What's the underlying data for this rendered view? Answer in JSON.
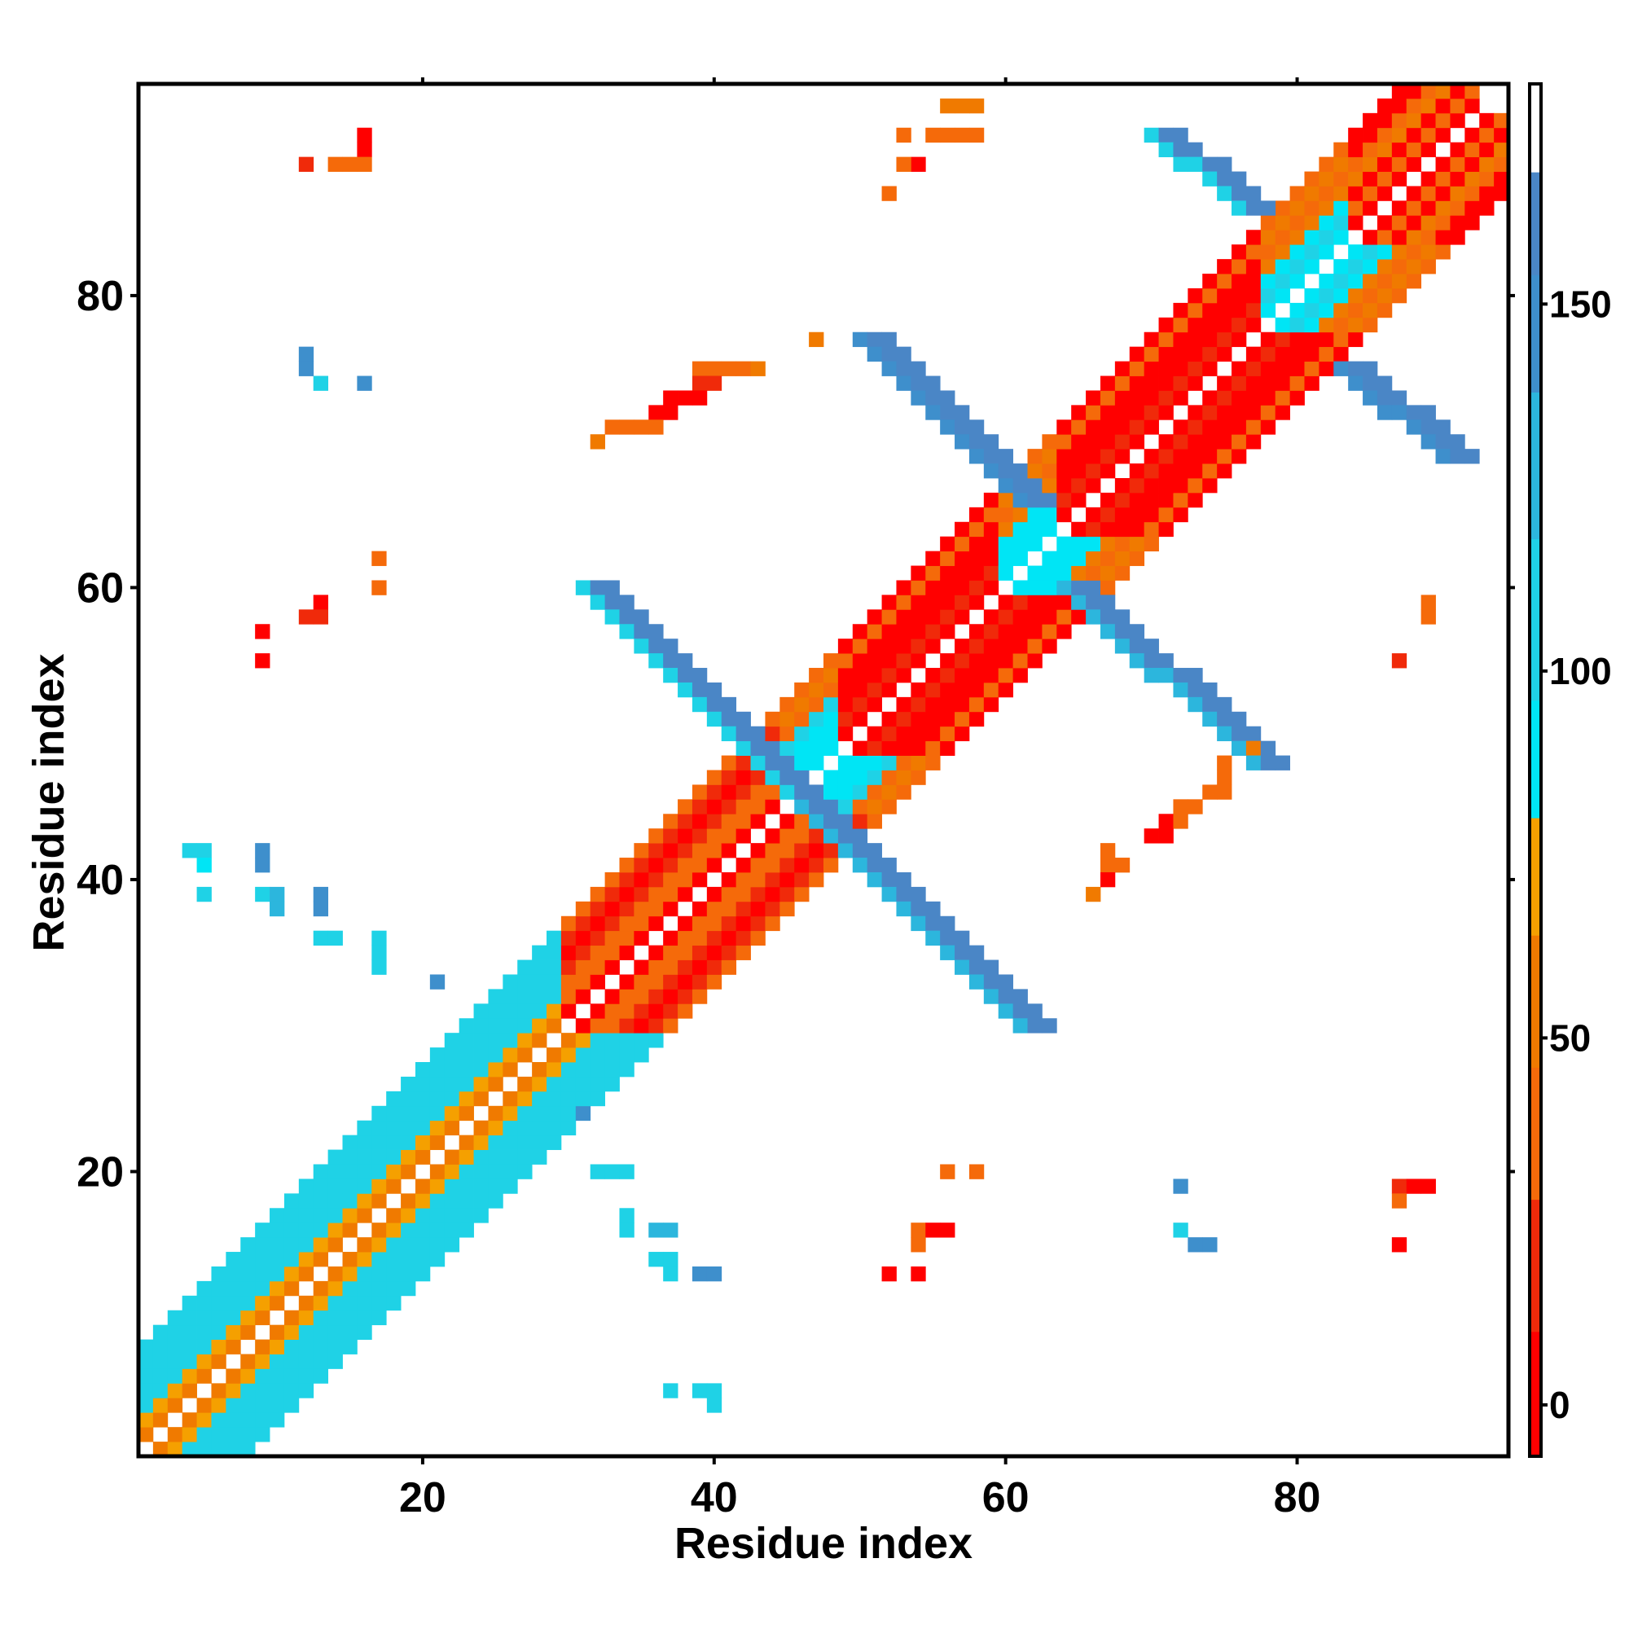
{
  "chart_data": {
    "type": "heatmap",
    "title": "",
    "xlabel": "Residue index",
    "ylabel": "Residue index",
    "xlim": [
      0.5,
      94.5
    ],
    "ylim": [
      0.5,
      94.5
    ],
    "x_ticks": [
      20,
      40,
      60,
      80
    ],
    "y_ticks": [
      20,
      40,
      60,
      80
    ],
    "colorbar": {
      "range": [
        -7,
        180
      ],
      "ticks": [
        0,
        50,
        100,
        150
      ],
      "bands": [
        {
          "from": -7,
          "to": 10,
          "color": "#ff0000"
        },
        {
          "from": 10,
          "to": 28,
          "color": "#f02a0a"
        },
        {
          "from": 28,
          "to": 46,
          "color": "#f56a0a"
        },
        {
          "from": 46,
          "to": 64,
          "color": "#f07a00"
        },
        {
          "from": 64,
          "to": 80,
          "color": "#f5a000"
        },
        {
          "from": 80,
          "to": 96,
          "color": "#00e5f5"
        },
        {
          "from": 96,
          "to": 118,
          "color": "#1fd2e6"
        },
        {
          "from": 118,
          "to": 138,
          "color": "#2cb6dd"
        },
        {
          "from": 138,
          "to": 154,
          "color": "#3e8fcc"
        },
        {
          "from": 154,
          "to": 168,
          "color": "#4a86c6"
        },
        {
          "from": 168,
          "to": 180,
          "color": "#ffffff"
        }
      ]
    },
    "grid": false,
    "legend": "colorbar-right",
    "diagonal_pattern": {
      "lo": 1,
      "hi": 92,
      "offsets": [
        1,
        2,
        3,
        4,
        5,
        6,
        7
      ],
      "segment_values": [
        {
          "from": 1,
          "to": 30,
          "values": [
            55,
            70,
            110,
            110,
            110,
            110,
            110
          ]
        },
        {
          "from": 30,
          "to": 45,
          "values": [
            5,
            45,
            40,
            20,
            5,
            20,
            40
          ]
        },
        {
          "from": 45,
          "to": 49,
          "values": [
            90,
            95,
            90,
            110,
            40,
            60,
            40
          ]
        },
        {
          "from": 49,
          "to": 60,
          "values": [
            5,
            20,
            5,
            5,
            5,
            40,
            5
          ]
        },
        {
          "from": 60,
          "to": 64,
          "values": [
            90,
            95,
            90,
            60,
            40,
            60,
            40
          ]
        },
        {
          "from": 64,
          "to": 78,
          "values": [
            5,
            20,
            5,
            5,
            5,
            40,
            5
          ]
        },
        {
          "from": 78,
          "to": 84,
          "values": [
            90,
            110,
            90,
            60,
            40,
            60,
            40
          ]
        },
        {
          "from": 84,
          "to": 94,
          "values": [
            5,
            40,
            5,
            60,
            40,
            5,
            5
          ]
        }
      ]
    },
    "sheet_bands": [
      {
        "c0": 31,
        "c1": 46,
        "r0": 60,
        "r1": 45,
        "width": 2,
        "values": [
          110,
          160,
          160
        ]
      },
      {
        "c0": 46,
        "c1": 61,
        "r0": 45,
        "r1": 30,
        "width": 2,
        "values": [
          130,
          160,
          160
        ]
      },
      {
        "c0": 50,
        "c1": 61,
        "r0": 77,
        "r1": 66,
        "width": 2,
        "values": [
          150,
          160,
          160
        ]
      },
      {
        "c0": 64,
        "c1": 77,
        "r0": 60,
        "r1": 48,
        "width": 2,
        "values": [
          130,
          160,
          160
        ]
      },
      {
        "c0": 70,
        "c1": 76,
        "r0": 91,
        "r1": 86,
        "width": 2,
        "values": [
          110,
          160,
          160
        ]
      },
      {
        "c0": 83,
        "c1": 90,
        "r0": 75,
        "r1": 69,
        "width": 2,
        "values": [
          140,
          160,
          160
        ]
      }
    ],
    "cells": [
      [
        56,
        93,
        62
      ],
      [
        57,
        93,
        62
      ],
      [
        58,
        93,
        62
      ],
      [
        53,
        91,
        30
      ],
      [
        55,
        91,
        30
      ],
      [
        56,
        91,
        30
      ],
      [
        57,
        91,
        30
      ],
      [
        58,
        91,
        30
      ],
      [
        54,
        89,
        5
      ],
      [
        53,
        89,
        40
      ],
      [
        52,
        87,
        30
      ],
      [
        16,
        90,
        5
      ],
      [
        16,
        91,
        5
      ],
      [
        15,
        89,
        40
      ],
      [
        16,
        89,
        40
      ],
      [
        14,
        89,
        40
      ],
      [
        12,
        89,
        20
      ],
      [
        47,
        77,
        62
      ],
      [
        39,
        75,
        40
      ],
      [
        40,
        75,
        40
      ],
      [
        41,
        75,
        40
      ],
      [
        42,
        75,
        40
      ],
      [
        43,
        75,
        60
      ],
      [
        39,
        74,
        20
      ],
      [
        40,
        74,
        20
      ],
      [
        37,
        73,
        5
      ],
      [
        38,
        73,
        5
      ],
      [
        39,
        73,
        5
      ],
      [
        36,
        72,
        5
      ],
      [
        37,
        72,
        5
      ],
      [
        33,
        71,
        40
      ],
      [
        34,
        71,
        40
      ],
      [
        35,
        71,
        40
      ],
      [
        36,
        71,
        40
      ],
      [
        32,
        70,
        62
      ],
      [
        12,
        76,
        140
      ],
      [
        12,
        75,
        140
      ],
      [
        13,
        74,
        110
      ],
      [
        16,
        74,
        150
      ],
      [
        17,
        62,
        40
      ],
      [
        17,
        60,
        40
      ],
      [
        13,
        59,
        5
      ],
      [
        13,
        58,
        5
      ],
      [
        12,
        58,
        20
      ],
      [
        13,
        58,
        20
      ],
      [
        9,
        57,
        5
      ],
      [
        9,
        55,
        5
      ],
      [
        89,
        59,
        40
      ],
      [
        89,
        58,
        40
      ],
      [
        87,
        55,
        20
      ],
      [
        77,
        49,
        62
      ],
      [
        75,
        48,
        40
      ],
      [
        75,
        47,
        40
      ],
      [
        74,
        46,
        40
      ],
      [
        75,
        46,
        40
      ],
      [
        72,
        45,
        30
      ],
      [
        73,
        45,
        30
      ],
      [
        71,
        44,
        5
      ],
      [
        72,
        44,
        30
      ],
      [
        70,
        43,
        5
      ],
      [
        71,
        43,
        5
      ],
      [
        67,
        42,
        40
      ],
      [
        67,
        41,
        40
      ],
      [
        68,
        41,
        40
      ],
      [
        67,
        40,
        5
      ],
      [
        66,
        39,
        62
      ],
      [
        4,
        42,
        110
      ],
      [
        5,
        42,
        110
      ],
      [
        5,
        41,
        95
      ],
      [
        9,
        42,
        150
      ],
      [
        9,
        41,
        150
      ],
      [
        5,
        39,
        110
      ],
      [
        9,
        39,
        110
      ],
      [
        10,
        39,
        130
      ],
      [
        10,
        38,
        130
      ],
      [
        13,
        39,
        140
      ],
      [
        13,
        38,
        140
      ],
      [
        13,
        36,
        110
      ],
      [
        14,
        36,
        110
      ],
      [
        17,
        36,
        110
      ],
      [
        17,
        35,
        110
      ],
      [
        17,
        34,
        110
      ],
      [
        21,
        33,
        150
      ],
      [
        31,
        24,
        150
      ],
      [
        32,
        20,
        110
      ],
      [
        33,
        20,
        110
      ],
      [
        34,
        20,
        110
      ],
      [
        34,
        17,
        110
      ],
      [
        34,
        16,
        110
      ],
      [
        36,
        16,
        130
      ],
      [
        37,
        16,
        130
      ],
      [
        36,
        14,
        110
      ],
      [
        37,
        14,
        110
      ],
      [
        37,
        13,
        110
      ],
      [
        39,
        13,
        150
      ],
      [
        40,
        13,
        150
      ],
      [
        37,
        5,
        110
      ],
      [
        39,
        5,
        110
      ],
      [
        40,
        5,
        110
      ],
      [
        40,
        4,
        110
      ],
      [
        56,
        20,
        40
      ],
      [
        58,
        20,
        40
      ],
      [
        54,
        16,
        30
      ],
      [
        55,
        16,
        5
      ],
      [
        56,
        16,
        5
      ],
      [
        54,
        15,
        40
      ],
      [
        52,
        13,
        5
      ],
      [
        54,
        13,
        5
      ],
      [
        72,
        19,
        150
      ],
      [
        72,
        16,
        110
      ],
      [
        73,
        15,
        150
      ],
      [
        74,
        15,
        150
      ],
      [
        87,
        19,
        20
      ],
      [
        88,
        19,
        5
      ],
      [
        89,
        19,
        5
      ],
      [
        87,
        18,
        40
      ],
      [
        87,
        15,
        5
      ]
    ]
  }
}
